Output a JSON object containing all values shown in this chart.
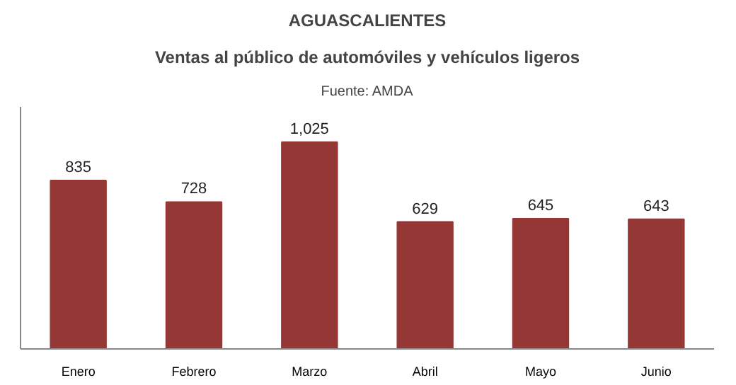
{
  "chart_data": {
    "type": "bar",
    "title": "AGUASCALIENTES",
    "subtitle": "Ventas al público de automóviles y vehículos ligeros",
    "annotations": [
      "Fuente: AMDA"
    ],
    "categories": [
      "Enero",
      "Febrero",
      "Marzo",
      "Abril",
      "Mayo",
      "Junio"
    ],
    "values": [
      835,
      728,
      1025,
      629,
      645,
      643
    ],
    "value_labels": [
      "835",
      "728",
      "1,025",
      "629",
      "645",
      "643"
    ],
    "color": "#953735",
    "tick_labels": "x",
    "grid": false
  }
}
